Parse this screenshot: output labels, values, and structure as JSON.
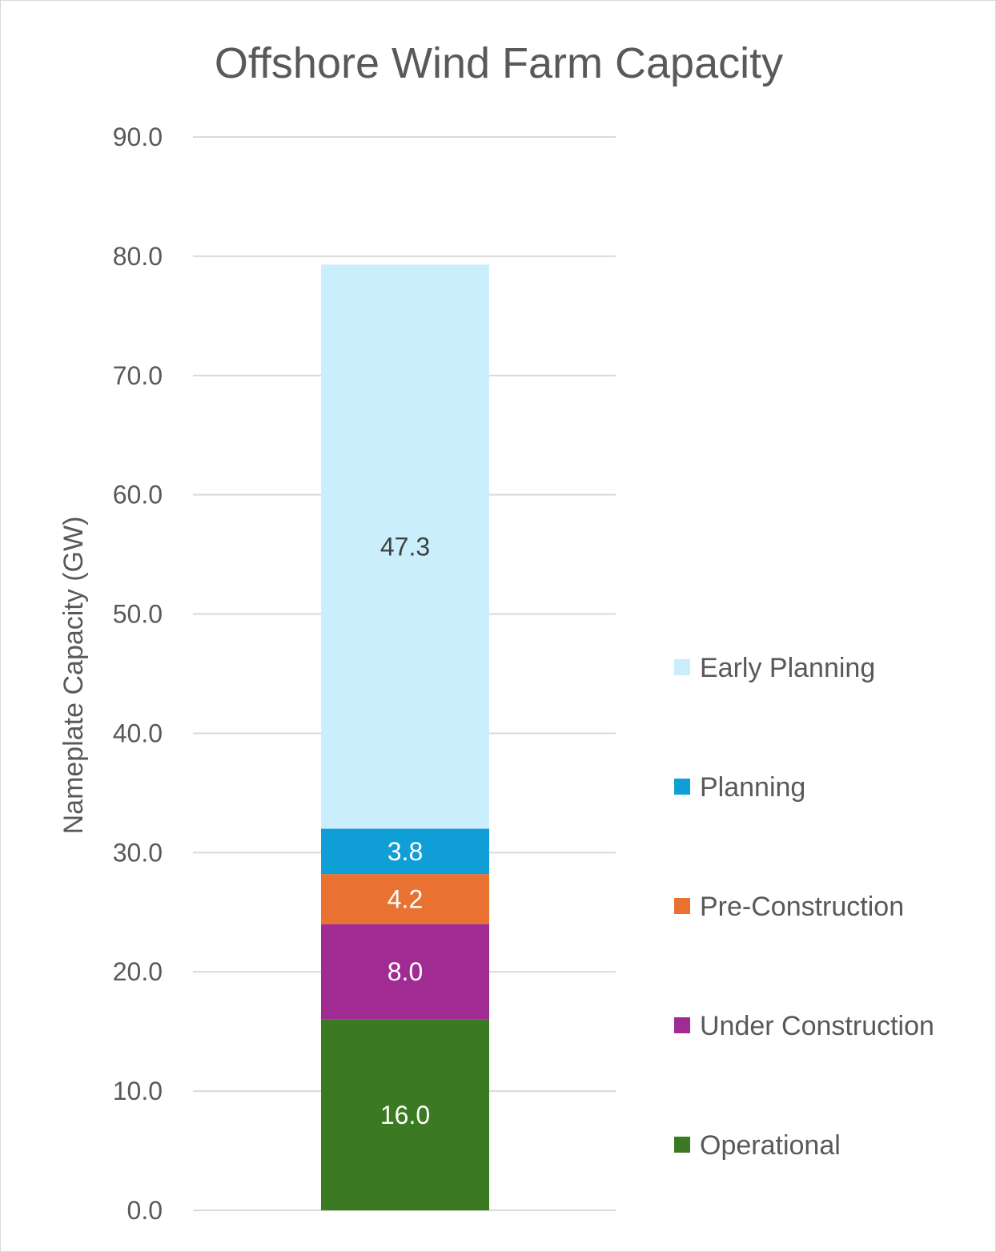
{
  "chart_data": {
    "type": "bar",
    "stacked": true,
    "title": "Offshore Wind Farm Capacity",
    "xlabel": "",
    "ylabel": "Nameplate Capacity (GW)",
    "ylim": [
      0,
      90
    ],
    "yticks": [
      "0.0",
      "10.0",
      "20.0",
      "30.0",
      "40.0",
      "50.0",
      "60.0",
      "70.0",
      "80.0",
      "90.0"
    ],
    "ytick_values": [
      0,
      10,
      20,
      30,
      40,
      50,
      60,
      70,
      80,
      90
    ],
    "grid": true,
    "legend_position": "right",
    "categories": [
      ""
    ],
    "series": [
      {
        "name": "Operational",
        "values": [
          16.0
        ],
        "label": "16.0",
        "color": "#3b7a23",
        "label_color": "#ffffff"
      },
      {
        "name": "Under Construction",
        "values": [
          8.0
        ],
        "label": "8.0",
        "color": "#a02b93",
        "label_color": "#ffffff"
      },
      {
        "name": "Pre-Construction",
        "values": [
          4.2
        ],
        "label": "4.2",
        "color": "#e97132",
        "label_color": "#ffffff"
      },
      {
        "name": "Planning",
        "values": [
          3.8
        ],
        "label": "3.8",
        "color": "#0f9ed5",
        "label_color": "#ffffff"
      },
      {
        "name": "Early Planning",
        "values": [
          47.3
        ],
        "label": "47.3",
        "color": "#caeefb",
        "label_color": "#404040"
      }
    ]
  }
}
